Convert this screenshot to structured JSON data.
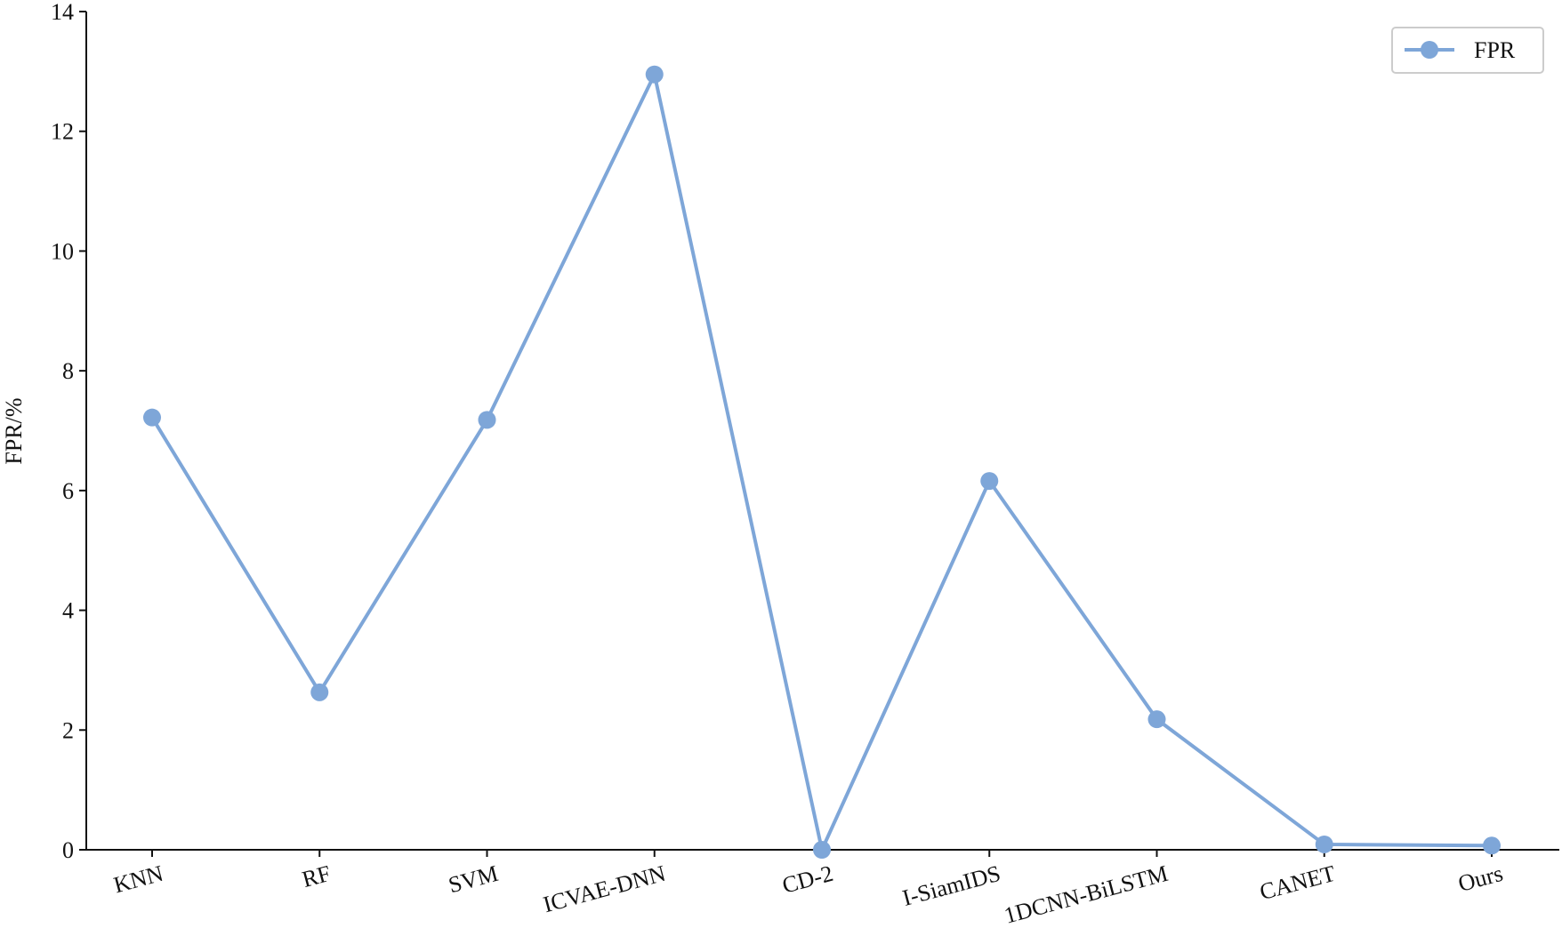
{
  "chart_data": {
    "type": "line",
    "y_label": "FPR/%",
    "categories": [
      "KNN",
      "RF",
      "SVM",
      "ICVAE-DNN",
      "CD-2",
      "I-SiamIDS",
      "1DCNN-BiLSTM",
      "CANET",
      "Ours"
    ],
    "series": [
      {
        "name": "FPR",
        "color": "#7ea6d8",
        "values": [
          7.22,
          2.63,
          7.18,
          12.95,
          0.0,
          6.16,
          2.18,
          0.09,
          0.07
        ]
      }
    ],
    "ylim": [
      0,
      14
    ],
    "yticks": [
      0,
      2,
      4,
      6,
      8,
      10,
      12,
      14
    ],
    "grid": false,
    "legend": "upper right"
  }
}
